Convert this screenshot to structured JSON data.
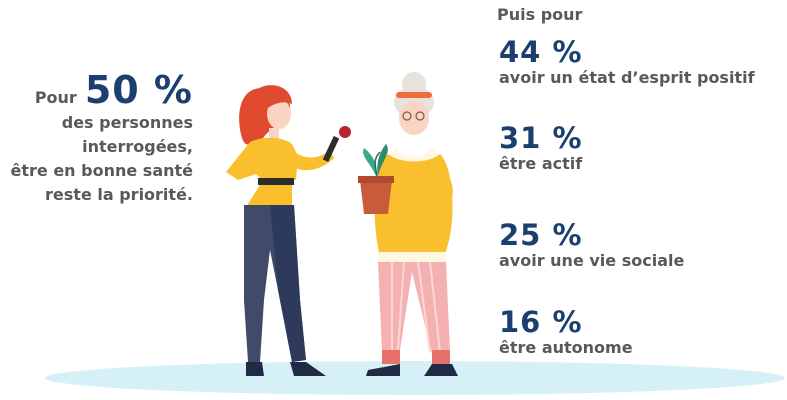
{
  "left": {
    "prefix": "Pour",
    "value": "50 %",
    "lines": [
      "des personnes",
      "interrogées,",
      "être en bonne santé",
      "reste la priorité."
    ]
  },
  "right": {
    "title": "Puis pour",
    "stats": [
      {
        "value": "44 %",
        "label": "avoir un état d’esprit positif"
      },
      {
        "value": "31 %",
        "label": "être actif"
      },
      {
        "value": "25 %",
        "label": "avoir une vie sociale"
      },
      {
        "value": "16 %",
        "label": "être autonome"
      }
    ]
  },
  "colors": {
    "accent": "#1b3f6e",
    "text": "#595959",
    "ground": "#d5f0f7",
    "yellow": "#f9bf2d"
  }
}
